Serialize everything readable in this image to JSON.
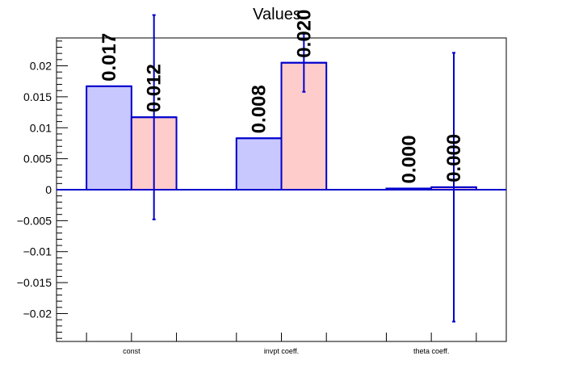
{
  "chart_data": {
    "type": "bar",
    "title": "Values",
    "xlabel": "",
    "ylabel": "",
    "categories": [
      "const",
      "invpt coeff.",
      "theta coeff."
    ],
    "series": [
      {
        "color": "#c8c8ff",
        "values": [
          0.0167,
          0.0083,
          0.0002
        ],
        "errors": [
          0,
          0,
          0
        ],
        "labels": [
          "0.017",
          "0.008",
          "0.000"
        ]
      },
      {
        "color": "#ffcccc",
        "values": [
          0.0117,
          0.0205,
          0.0004
        ],
        "errors": [
          0.0165,
          0.0047,
          0.0217
        ],
        "labels": [
          "0.012",
          "0.020",
          "0.000"
        ]
      }
    ],
    "ylim": [
      -0.0245,
      0.0245
    ],
    "yticks": [
      -0.02,
      -0.015,
      -0.01,
      -0.005,
      0,
      0.005,
      0.01,
      0.015,
      0.02
    ],
    "ytick_labels": [
      "−0.02",
      "−0.015",
      "−0.01",
      "−0.005",
      "0",
      "0.005",
      "0.01",
      "0.015",
      "0.02"
    ],
    "grid": false,
    "legend": "none",
    "edge_color": "#0000cc",
    "error_color": "#0000cc"
  }
}
